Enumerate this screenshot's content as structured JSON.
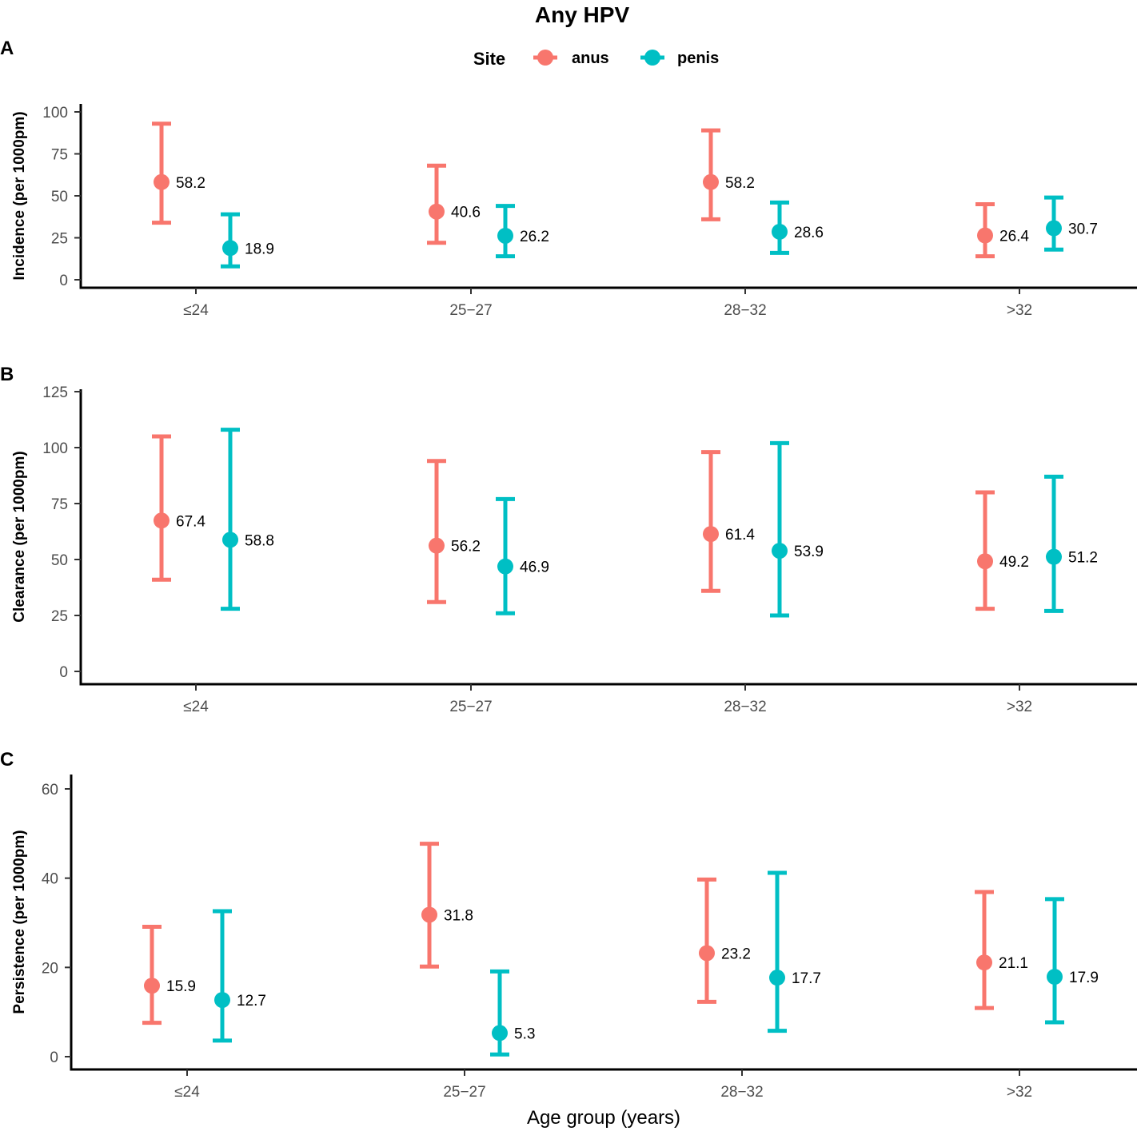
{
  "title": "Any HPV",
  "legend": {
    "title": "Site",
    "items": [
      {
        "label": "anus",
        "color": "#F8766D"
      },
      {
        "label": "penis",
        "color": "#00BFC4"
      }
    ]
  },
  "xlabel": "Age group (years)",
  "chart_data": [
    {
      "type": "errorbar",
      "panel": "A",
      "ylabel": "Incidence (per 1000pm)",
      "categories": [
        "≤24",
        "25−27",
        "28−32",
        ">32"
      ],
      "ylim": [
        0,
        100
      ],
      "yticks": [
        0,
        25,
        50,
        75,
        100
      ],
      "series": [
        {
          "name": "anus",
          "values": [
            58.2,
            40.6,
            58.2,
            26.4
          ],
          "lower": [
            34,
            22,
            36,
            14
          ],
          "upper": [
            93,
            68,
            89,
            45
          ],
          "labels": [
            "58.2",
            "40.6",
            "58.2",
            "26.4"
          ]
        },
        {
          "name": "penis",
          "values": [
            18.9,
            26.2,
            28.6,
            30.7
          ],
          "lower": [
            8,
            14,
            16,
            18
          ],
          "upper": [
            39,
            44,
            46,
            49
          ],
          "labels": [
            "18.9",
            "26.2",
            "28.6",
            "30.7"
          ]
        }
      ]
    },
    {
      "type": "errorbar",
      "panel": "B",
      "ylabel": "Clearance (per 1000pm)",
      "categories": [
        "≤24",
        "25−27",
        "28−32",
        ">32"
      ],
      "ylim": [
        0,
        125
      ],
      "yticks": [
        0,
        25,
        50,
        75,
        100,
        125
      ],
      "series": [
        {
          "name": "anus",
          "values": [
            67.4,
            56.2,
            61.4,
            49.2
          ],
          "lower": [
            41,
            31,
            36,
            28
          ],
          "upper": [
            105,
            94,
            98,
            80
          ],
          "labels": [
            "67.4",
            "56.2",
            "61.4",
            "49.2"
          ]
        },
        {
          "name": "penis",
          "values": [
            58.8,
            46.9,
            53.9,
            51.2
          ],
          "lower": [
            28,
            26,
            25,
            27
          ],
          "upper": [
            108,
            77,
            102,
            87
          ],
          "labels": [
            "58.8",
            "46.9",
            "53.9",
            "51.2"
          ]
        }
      ]
    },
    {
      "type": "errorbar",
      "panel": "C",
      "ylabel": "Persistence (per 1000pm)",
      "categories": [
        "≤24",
        "25−27",
        "28−32",
        ">32"
      ],
      "ylim": [
        0,
        60
      ],
      "yticks": [
        0,
        20,
        40,
        60
      ],
      "series": [
        {
          "name": "anus",
          "values": [
            15.9,
            31.8,
            23.2,
            21.1
          ],
          "lower": [
            7.6,
            20.2,
            12.3,
            10.9
          ],
          "upper": [
            29.1,
            47.7,
            39.7,
            36.9
          ],
          "labels": [
            "15.9",
            "31.8",
            "23.2",
            "21.1"
          ]
        },
        {
          "name": "penis",
          "values": [
            12.7,
            5.3,
            17.7,
            17.9
          ],
          "lower": [
            3.6,
            0.5,
            5.8,
            7.7
          ],
          "upper": [
            32.6,
            19.1,
            41.2,
            35.3
          ],
          "labels": [
            "12.7",
            "5.3",
            "17.7",
            "17.9"
          ]
        }
      ]
    }
  ]
}
